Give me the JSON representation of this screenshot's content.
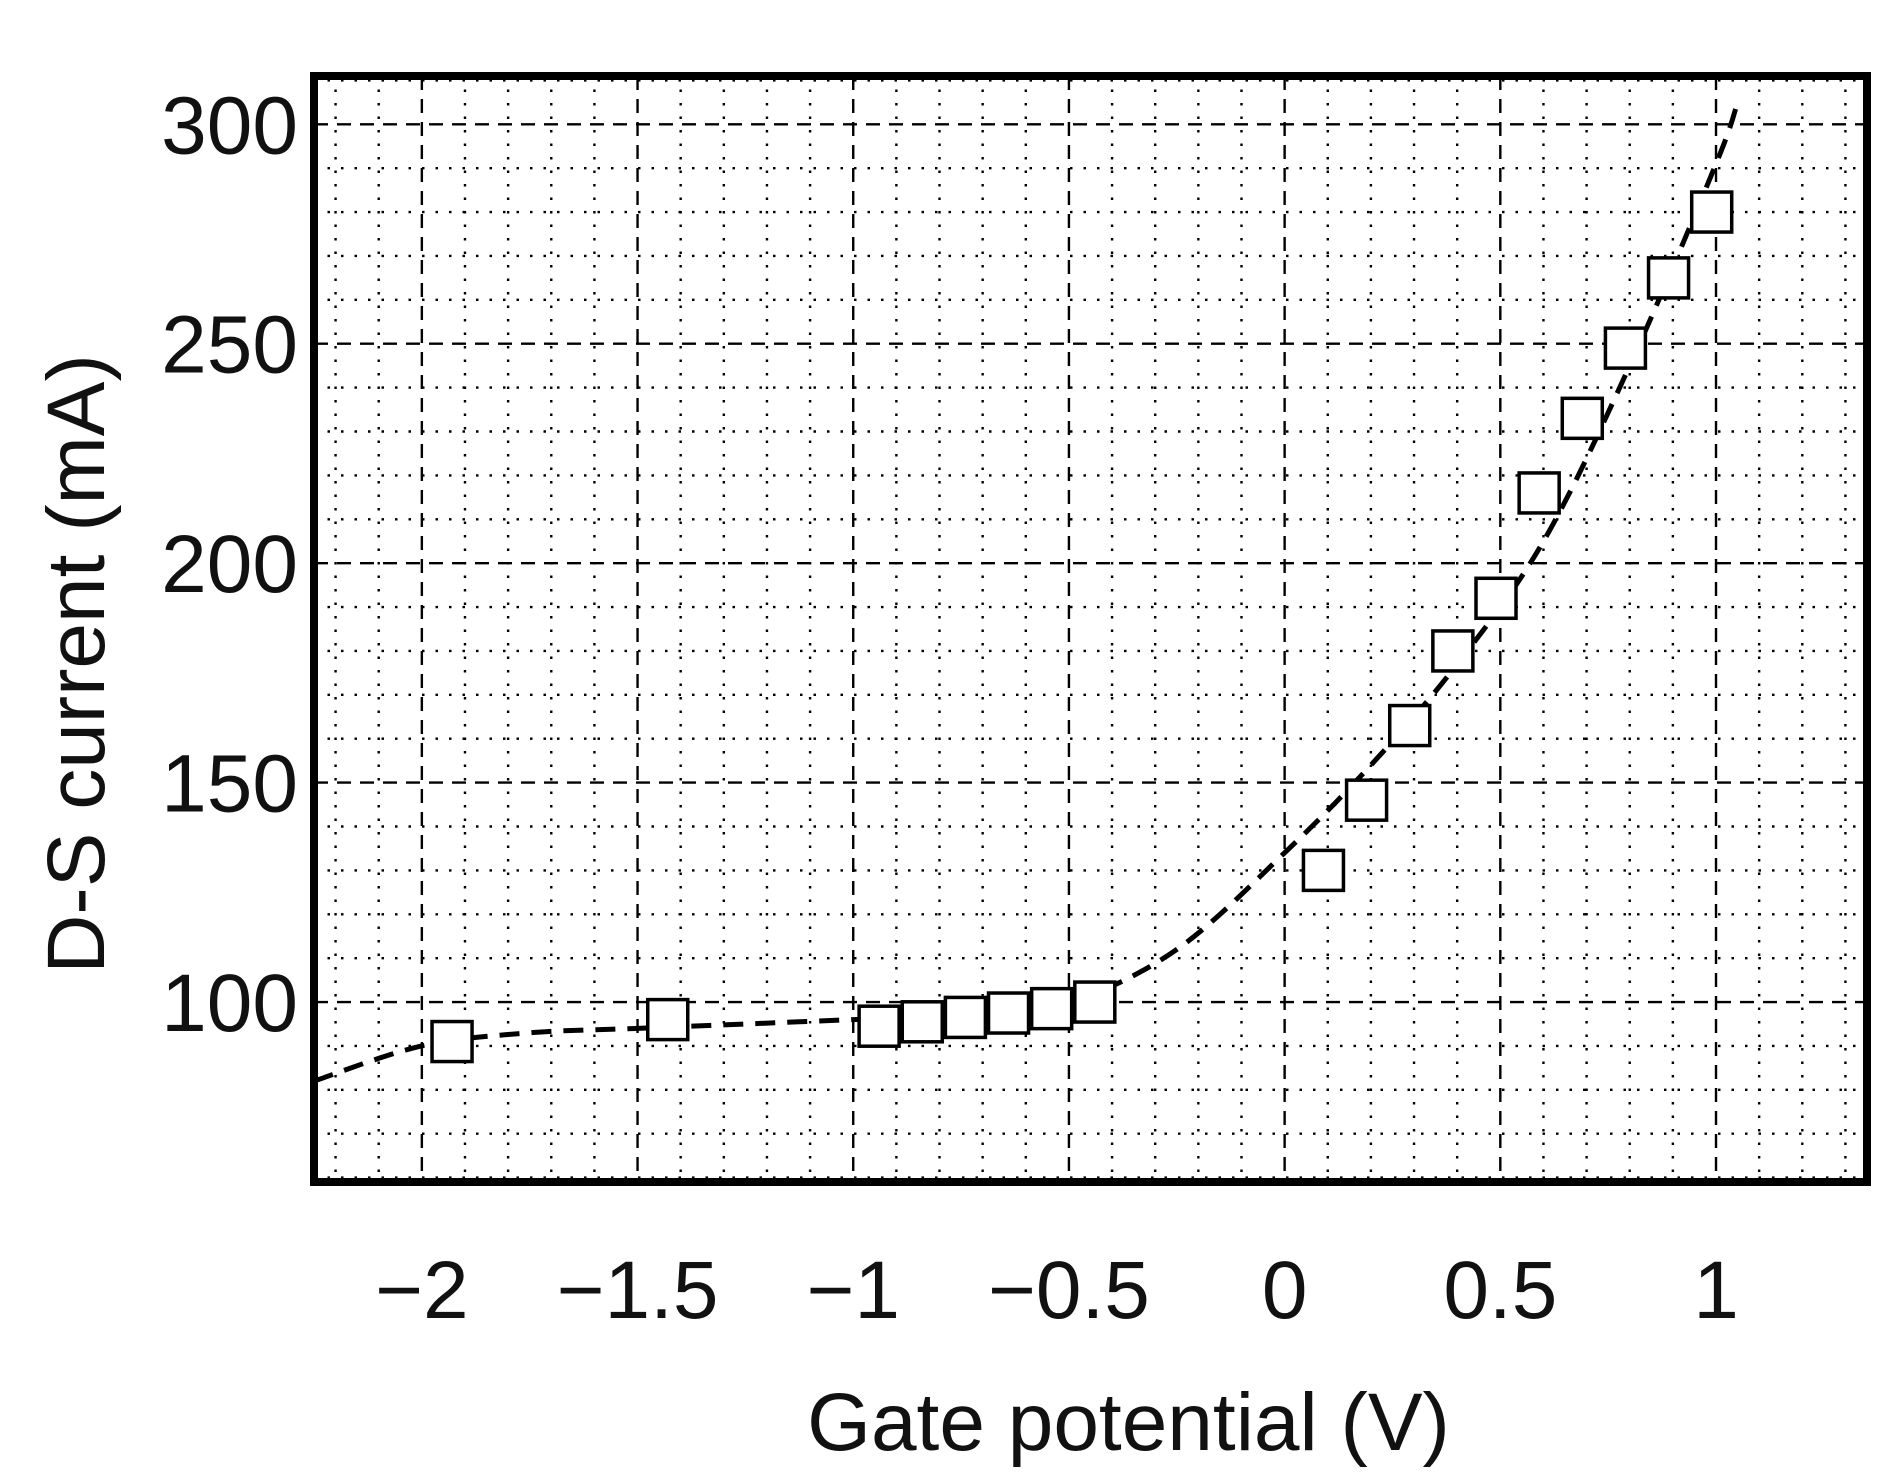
{
  "chart_data": {
    "type": "scatter",
    "xlabel": "Gate potential (V)",
    "ylabel": "D-S current (mA)",
    "xlim": [
      -2.25,
      1.35
    ],
    "ylim": [
      59,
      311
    ],
    "x_ticks": [
      -2,
      -1.5,
      -1,
      -0.5,
      0,
      0.5,
      1
    ],
    "x_tick_labels": [
      "−2",
      "−1.5",
      "−1",
      "−0.5",
      "0",
      "0.5",
      "1"
    ],
    "y_ticks": [
      100,
      150,
      200,
      250,
      300
    ],
    "y_tick_labels": [
      "100",
      "150",
      "200",
      "250",
      "300"
    ],
    "grid": {
      "major": true,
      "minor": true,
      "x_minor_step": 0.1,
      "y_minor_step": 10
    },
    "series": [
      {
        "marker": "square-open",
        "x": [
          -1.93,
          -1.43,
          -0.94,
          -0.84,
          -0.74,
          -0.64,
          -0.54,
          -0.44,
          0.09,
          0.19,
          0.29,
          0.39,
          0.49,
          0.59,
          0.69,
          0.79,
          0.89,
          0.99
        ],
        "y": [
          91,
          96,
          94.5,
          95.5,
          96.5,
          97.5,
          98.5,
          100,
          130,
          146,
          163,
          180,
          192,
          216,
          233,
          249,
          265,
          280
        ]
      },
      {
        "style": "dashed",
        "x": [
          -2.25,
          -2.0,
          -1.75,
          -1.5,
          -1.25,
          -1.0,
          -0.75,
          -0.5,
          -0.25,
          0.0,
          0.2,
          0.4,
          0.6,
          0.8,
          1.0,
          1.05
        ],
        "y": [
          82,
          90,
          93,
          94,
          95,
          96,
          97,
          100,
          112,
          134,
          154,
          177,
          205,
          245,
          291,
          305
        ]
      }
    ]
  }
}
